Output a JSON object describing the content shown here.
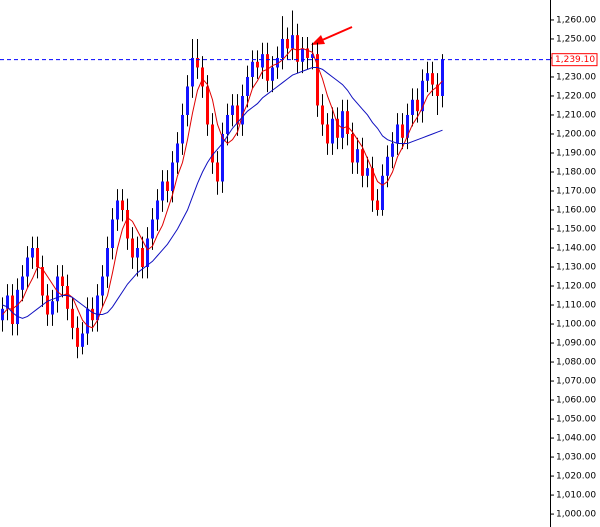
{
  "chart_data": {
    "type": "candlestick",
    "open": [
      1102,
      1108,
      1115,
      1100,
      1118,
      1125,
      1135,
      1140,
      1130,
      1115,
      1105,
      1112,
      1125,
      1120,
      1108,
      1098,
      1088,
      1095,
      1108,
      1102,
      1115,
      1125,
      1140,
      1155,
      1165,
      1160,
      1145,
      1135,
      1140,
      1130,
      1145,
      1155,
      1165,
      1175,
      1170,
      1185,
      1195,
      1210,
      1225,
      1240,
      1235,
      1225,
      1205,
      1185,
      1175,
      1200,
      1210,
      1215,
      1205,
      1220,
      1230,
      1238,
      1235,
      1242,
      1228,
      1235,
      1240,
      1250,
      1245,
      1252,
      1238,
      1245,
      1240,
      1242,
      1215,
      1205,
      1195,
      1208,
      1198,
      1212,
      1200,
      1185,
      1192,
      1178,
      1182,
      1165,
      1160,
      1178,
      1188,
      1195,
      1205,
      1198,
      1210,
      1218,
      1212,
      1228,
      1232,
      1226,
      1220
    ],
    "high": [
      1114,
      1121,
      1121,
      1124,
      1131,
      1141,
      1146,
      1146,
      1136,
      1121,
      1118,
      1131,
      1131,
      1126,
      1114,
      1104,
      1101,
      1114,
      1114,
      1121,
      1131,
      1146,
      1161,
      1171,
      1171,
      1166,
      1151,
      1146,
      1146,
      1151,
      1161,
      1171,
      1181,
      1181,
      1191,
      1201,
      1216,
      1231,
      1250,
      1250,
      1241,
      1231,
      1211,
      1191,
      1206,
      1216,
      1221,
      1221,
      1226,
      1236,
      1244,
      1244,
      1248,
      1248,
      1241,
      1246,
      1262,
      1256,
      1265,
      1258,
      1251,
      1251,
      1248,
      1248,
      1221,
      1211,
      1214,
      1214,
      1218,
      1218,
      1206,
      1198,
      1198,
      1188,
      1188,
      1171,
      1184,
      1194,
      1201,
      1211,
      1211,
      1216,
      1224,
      1224,
      1234,
      1238,
      1238,
      1232,
      1242
    ],
    "low": [
      1096,
      1102,
      1094,
      1094,
      1112,
      1119,
      1129,
      1124,
      1109,
      1099,
      1099,
      1106,
      1114,
      1102,
      1092,
      1082,
      1084,
      1089,
      1096,
      1096,
      1109,
      1119,
      1134,
      1149,
      1154,
      1139,
      1129,
      1125,
      1124,
      1124,
      1139,
      1149,
      1159,
      1164,
      1164,
      1179,
      1189,
      1204,
      1219,
      1229,
      1219,
      1199,
      1179,
      1168,
      1169,
      1194,
      1204,
      1199,
      1199,
      1214,
      1224,
      1229,
      1229,
      1222,
      1222,
      1229,
      1234,
      1239,
      1239,
      1232,
      1232,
      1234,
      1234,
      1209,
      1199,
      1189,
      1189,
      1192,
      1192,
      1194,
      1179,
      1179,
      1172,
      1172,
      1159,
      1157,
      1157,
      1172,
      1182,
      1189,
      1192,
      1192,
      1204,
      1206,
      1206,
      1222,
      1220,
      1210,
      1214
    ],
    "close": [
      1108,
      1115,
      1100,
      1118,
      1125,
      1135,
      1140,
      1130,
      1115,
      1105,
      1112,
      1125,
      1120,
      1108,
      1098,
      1088,
      1095,
      1108,
      1102,
      1115,
      1125,
      1140,
      1155,
      1165,
      1160,
      1145,
      1135,
      1140,
      1130,
      1145,
      1155,
      1165,
      1175,
      1170,
      1185,
      1195,
      1210,
      1225,
      1240,
      1235,
      1225,
      1205,
      1185,
      1175,
      1200,
      1210,
      1215,
      1205,
      1220,
      1230,
      1238,
      1235,
      1242,
      1228,
      1235,
      1240,
      1250,
      1245,
      1252,
      1238,
      1245,
      1240,
      1242,
      1215,
      1205,
      1195,
      1208,
      1198,
      1212,
      1200,
      1185,
      1192,
      1178,
      1182,
      1165,
      1160,
      1178,
      1188,
      1195,
      1205,
      1198,
      1210,
      1218,
      1212,
      1228,
      1232,
      1226,
      1220,
      1239.1
    ],
    "up_color": "#1414ff",
    "down_color": "#ff0000",
    "series": [
      {
        "color": "#e00000",
        "values": [
          1105,
          1108,
          1108,
          1110,
          1113,
          1119,
          1124,
          1130,
          1129,
          1125,
          1121,
          1117,
          1115,
          1116,
          1114,
          1108,
          1102,
          1099,
          1098,
          1102,
          1109,
          1115,
          1127,
          1140,
          1150,
          1156,
          1154,
          1149,
          1144,
          1139,
          1141,
          1147,
          1152,
          1160,
          1168,
          1178,
          1185,
          1197,
          1211,
          1223,
          1229,
          1226,
          1218,
          1205,
          1198,
          1195,
          1197,
          1201,
          1210,
          1216,
          1224,
          1228,
          1233,
          1234,
          1236,
          1237,
          1239,
          1242,
          1245,
          1244,
          1245,
          1244,
          1243,
          1236,
          1229,
          1220,
          1213,
          1205,
          1203,
          1204,
          1201,
          1197,
          1193,
          1187,
          1181,
          1175,
          1173,
          1175,
          1180,
          1188,
          1193,
          1199,
          1205,
          1209,
          1214,
          1220,
          1223,
          1225,
          1228
        ]
      },
      {
        "color": "#1010c0",
        "values": [
          1110,
          1109,
          1106,
          1104,
          1103,
          1104,
          1106,
          1108,
          1110,
          1112,
          1113,
          1114,
          1115,
          1115,
          1114,
          1112,
          1110,
          1108,
          1106,
          1105,
          1105,
          1106,
          1109,
          1113,
          1117,
          1121,
          1124,
          1127,
          1129,
          1131,
          1133,
          1136,
          1139,
          1142,
          1146,
          1150,
          1155,
          1160,
          1167,
          1174,
          1180,
          1185,
          1189,
          1192,
          1195,
          1199,
          1203,
          1206,
          1209,
          1212,
          1214,
          1216,
          1219,
          1221,
          1223,
          1225,
          1227,
          1229,
          1231,
          1232,
          1233,
          1234,
          1235,
          1235,
          1234,
          1232,
          1230,
          1228,
          1226,
          1223,
          1219,
          1216,
          1213,
          1210,
          1206,
          1203,
          1199,
          1197,
          1196,
          1195,
          1195,
          1195,
          1196,
          1197,
          1198,
          1199,
          1200,
          1201,
          1202
        ]
      }
    ],
    "price_line": {
      "value": 1239.1,
      "label": "1,239.10"
    },
    "ylim": [
      993.2,
      1270.5
    ],
    "yticks": [
      {
        "value": 1000,
        "label": "1,000.00"
      },
      {
        "value": 1010,
        "label": "1,010.00"
      },
      {
        "value": 1020,
        "label": "1,020.00"
      },
      {
        "value": 1030,
        "label": "1,030.00"
      },
      {
        "value": 1040,
        "label": "1,040.00"
      },
      {
        "value": 1050,
        "label": "1,050.00"
      },
      {
        "value": 1060,
        "label": "1,060.00"
      },
      {
        "value": 1070,
        "label": "1,070.00"
      },
      {
        "value": 1080,
        "label": "1,080.00"
      },
      {
        "value": 1090,
        "label": "1,090.00"
      },
      {
        "value": 1100,
        "label": "1,100.00"
      },
      {
        "value": 1110,
        "label": "1,110.00"
      },
      {
        "value": 1120,
        "label": "1,120.00"
      },
      {
        "value": 1130,
        "label": "1,130.00"
      },
      {
        "value": 1140,
        "label": "1,140.00"
      },
      {
        "value": 1150,
        "label": "1,150.00"
      },
      {
        "value": 1160,
        "label": "1,160.00"
      },
      {
        "value": 1170,
        "label": "1,170.00"
      },
      {
        "value": 1180,
        "label": "1,180.00"
      },
      {
        "value": 1190,
        "label": "1,190.00"
      },
      {
        "value": 1200,
        "label": "1,200.00"
      },
      {
        "value": 1210,
        "label": "1,210.00"
      },
      {
        "value": 1220,
        "label": "1,220.00"
      },
      {
        "value": 1230,
        "label": "1,230.00"
      },
      {
        "value": 1240,
        "label": "1,240.00"
      },
      {
        "value": 1250,
        "label": "1,250.00"
      },
      {
        "value": 1260,
        "label": "1,260.00"
      }
    ]
  }
}
